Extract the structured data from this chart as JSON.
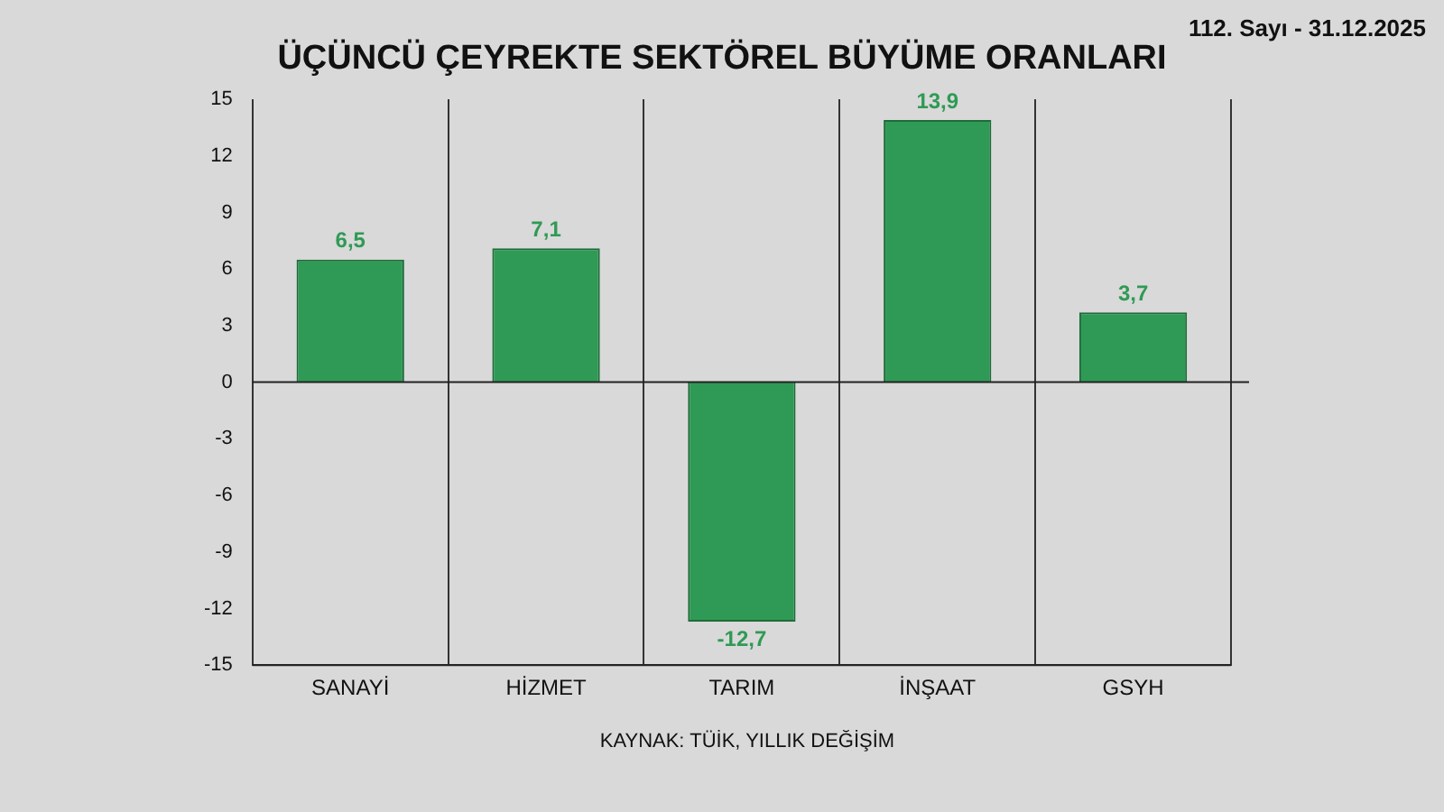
{
  "chart_data": {
    "type": "bar",
    "title": "ÜÇÜNCÜ ÇEYREKTE SEKTÖREL BÜYÜME ORANLARI",
    "subtitle": "112. Sayı - 31.12.2025",
    "categories": [
      "SANAYİ",
      "HİZMET",
      "TARIM",
      "İNŞAAT",
      "GSYH"
    ],
    "values": [
      6.5,
      7.1,
      -12.7,
      13.9,
      3.7
    ],
    "color": "#2f9a55",
    "ylim": [
      -15,
      15
    ],
    "yticks": [
      -15,
      -12,
      -9,
      -6,
      -3,
      0,
      3,
      6,
      9,
      12,
      15
    ],
    "grid": "x",
    "value_labels": [
      "6,5",
      "7,1",
      "-12,7",
      "13,9",
      "3,7"
    ],
    "annotations": [
      "KAYNAK: TÜİK, YILLIK DEĞİŞİM"
    ]
  }
}
